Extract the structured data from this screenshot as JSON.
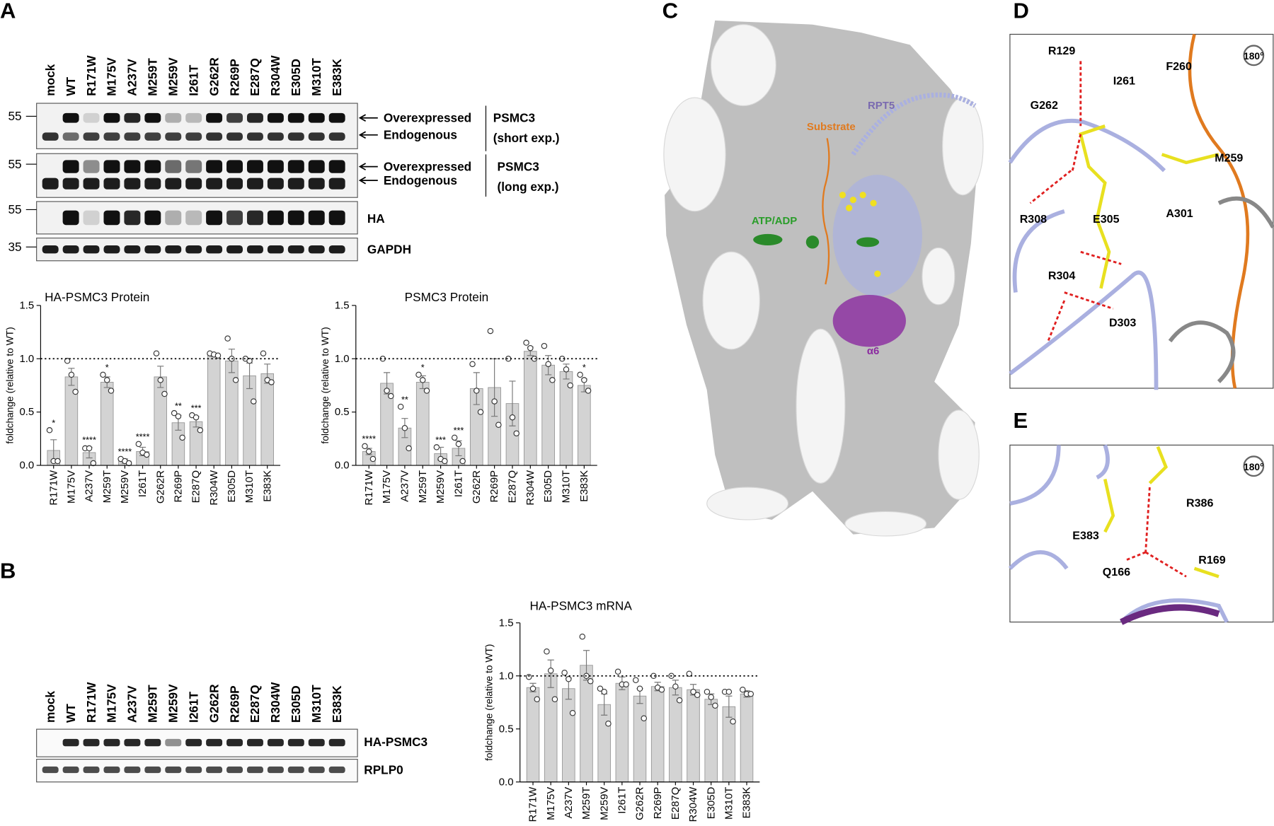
{
  "panel_labels": [
    "A",
    "B",
    "C",
    "D",
    "E"
  ],
  "blot_a": {
    "lanes": [
      "mock",
      "WT",
      "R171W",
      "M175V",
      "A237V",
      "M259T",
      "M259V",
      "I261T",
      "G262R",
      "R269P",
      "E287Q",
      "R304W",
      "E305D",
      "M310T",
      "E383K"
    ],
    "markers": [
      "55",
      "55",
      "55",
      "35"
    ],
    "short_exp": {
      "bands": [
        "Overexpressed",
        "Endogenous"
      ],
      "protein": "PSMC3",
      "note": "(short exp.)"
    },
    "long_exp": {
      "bands": [
        "Overexpressed",
        "Endogenous"
      ],
      "protein": "PSMC3",
      "note": "(long exp.)"
    },
    "rows": [
      "HA",
      "GAPDH"
    ]
  },
  "blot_b": {
    "lanes": [
      "mock",
      "WT",
      "R171W",
      "M175V",
      "A237V",
      "M259T",
      "M259V",
      "I261T",
      "G262R",
      "R269P",
      "E287Q",
      "R304W",
      "E305D",
      "M310T",
      "E383K"
    ],
    "rows": [
      "HA-PSMC3",
      "RPLP0"
    ]
  },
  "chart_data": [
    {
      "type": "bar",
      "title": "HA-PSMC3 Protein",
      "y_label": "foldchange (relative to WT)",
      "categories": [
        "R171W",
        "M175V",
        "A237V",
        "M259T",
        "M259V",
        "I261T",
        "G262R",
        "R269P",
        "E287Q",
        "R304W",
        "E305D",
        "M310T",
        "E383K"
      ],
      "values": [
        0.14,
        0.83,
        0.12,
        0.78,
        0.04,
        0.13,
        0.83,
        0.4,
        0.41,
        1.03,
        0.98,
        0.84,
        0.86
      ],
      "errors": [
        0.1,
        0.08,
        0.05,
        0.05,
        0.02,
        0.04,
        0.1,
        0.07,
        0.05,
        0.01,
        0.11,
        0.12,
        0.09
      ],
      "points": [
        [
          0.33,
          0.04,
          0.04
        ],
        [
          0.98,
          0.85,
          0.69
        ],
        [
          0.16,
          0.16,
          0.02
        ],
        [
          0.85,
          0.8,
          0.7
        ],
        [
          0.06,
          0.04,
          0.02
        ],
        [
          0.2,
          0.12,
          0.1
        ],
        [
          1.05,
          0.8,
          0.67
        ],
        [
          0.49,
          0.46,
          0.26
        ],
        [
          0.47,
          0.45,
          0.33
        ],
        [
          1.05,
          1.04,
          1.03
        ],
        [
          1.19,
          1.0,
          0.8
        ],
        [
          1.0,
          0.98,
          0.6
        ],
        [
          1.05,
          0.8,
          0.78
        ]
      ],
      "significance": [
        "*",
        null,
        "****",
        "*",
        "****",
        "****",
        null,
        "**",
        "***",
        null,
        null,
        null,
        null
      ],
      "color": "#d3d3d3",
      "reference_line": 1,
      "ylim": [
        0,
        1.5
      ],
      "yticks": [
        {
          "value": 0,
          "label": "0.0"
        },
        {
          "value": 0.5,
          "label": "0.5"
        },
        {
          "value": 1,
          "label": "1.0"
        },
        {
          "value": 1.5,
          "label": "1.5"
        }
      ]
    },
    {
      "type": "bar",
      "title": "PSMC3 Protein",
      "y_label": "foldchange (relative to WT)",
      "categories": [
        "R171W",
        "M175V",
        "A237V",
        "M259T",
        "M259V",
        "I261T",
        "G262R",
        "R269P",
        "E287Q",
        "R304W",
        "E305D",
        "M310T",
        "E383K"
      ],
      "values": [
        0.13,
        0.77,
        0.35,
        0.78,
        0.11,
        0.16,
        0.72,
        0.73,
        0.58,
        1.07,
        0.94,
        0.88,
        0.75
      ],
      "errors": [
        0.03,
        0.1,
        0.09,
        0.06,
        0.06,
        0.07,
        0.15,
        0.27,
        0.21,
        0.04,
        0.09,
        0.07,
        0.06
      ],
      "points": [
        [
          0.18,
          0.13,
          0.06
        ],
        [
          1.0,
          0.7,
          0.65
        ],
        [
          0.55,
          0.35,
          0.16
        ],
        [
          0.85,
          0.8,
          0.7
        ],
        [
          0.17,
          0.06,
          0.04
        ],
        [
          0.26,
          0.2,
          0.04
        ],
        [
          0.95,
          0.7,
          0.5
        ],
        [
          1.26,
          0.6,
          0.38
        ],
        [
          1.0,
          0.45,
          0.3
        ],
        [
          1.15,
          1.1,
          1.0
        ],
        [
          1.12,
          0.95,
          0.8
        ],
        [
          1.0,
          0.9,
          0.75
        ],
        [
          0.85,
          0.8,
          0.7
        ]
      ],
      "significance": [
        "****",
        null,
        "**",
        "*",
        "***",
        "***",
        null,
        null,
        null,
        null,
        null,
        null,
        "*"
      ],
      "color": "#d3d3d3",
      "reference_line": 1,
      "ylim": [
        0,
        1.5
      ],
      "yticks": [
        {
          "value": 0,
          "label": "0.0"
        },
        {
          "value": 0.5,
          "label": "0.5"
        },
        {
          "value": 1,
          "label": "1.0"
        },
        {
          "value": 1.5,
          "label": "1.5"
        }
      ]
    },
    {
      "type": "bar",
      "title": "HA-PSMC3 mRNA",
      "y_label": "foldchange (relative to WT)",
      "categories": [
        "R171W",
        "M175V",
        "A237V",
        "M259T",
        "M259V",
        "I261T",
        "G262R",
        "R269P",
        "E287Q",
        "R304W",
        "E305D",
        "M310T",
        "E383K"
      ],
      "values": [
        0.89,
        1.02,
        0.88,
        1.1,
        0.73,
        0.93,
        0.81,
        0.9,
        0.89,
        0.87,
        0.78,
        0.71,
        0.83
      ],
      "errors": [
        0.04,
        0.13,
        0.1,
        0.14,
        0.1,
        0.06,
        0.07,
        0.04,
        0.07,
        0.05,
        0.05,
        0.1,
        0.03
      ],
      "points": [
        [
          0.99,
          0.88,
          0.78
        ],
        [
          1.23,
          1.05,
          0.78
        ],
        [
          1.03,
          0.97,
          0.65
        ],
        [
          1.37,
          1.0,
          0.95
        ],
        [
          0.88,
          0.85,
          0.55
        ],
        [
          1.04,
          0.92,
          0.92
        ],
        [
          0.96,
          0.88,
          0.6
        ],
        [
          1.0,
          0.89,
          0.87
        ],
        [
          1.0,
          0.9,
          0.77
        ],
        [
          1.02,
          0.85,
          0.82
        ],
        [
          0.85,
          0.8,
          0.72
        ],
        [
          0.85,
          0.85,
          0.57
        ],
        [
          0.87,
          0.83,
          0.83
        ]
      ],
      "color": "#d3d3d3",
      "reference_line": 1,
      "ylim": [
        0,
        1.5
      ],
      "yticks": [
        {
          "value": 0,
          "label": "0.0"
        },
        {
          "value": 0.5,
          "label": "0.5"
        },
        {
          "value": 1,
          "label": "1.0"
        },
        {
          "value": 1.5,
          "label": "1.5"
        }
      ]
    }
  ],
  "structure_c": {
    "labels": [
      "Substrate",
      "RPT5",
      "ATP/ADP",
      "α6"
    ]
  },
  "structure_d": {
    "rotation": "180°",
    "labels": [
      "R129",
      "I261",
      "F260",
      "G262",
      "M259",
      "R308",
      "E305",
      "A301",
      "R304",
      "D303"
    ]
  },
  "structure_e": {
    "rotation": "180°",
    "labels": [
      "E383",
      "R386",
      "Q166",
      "R169"
    ]
  }
}
